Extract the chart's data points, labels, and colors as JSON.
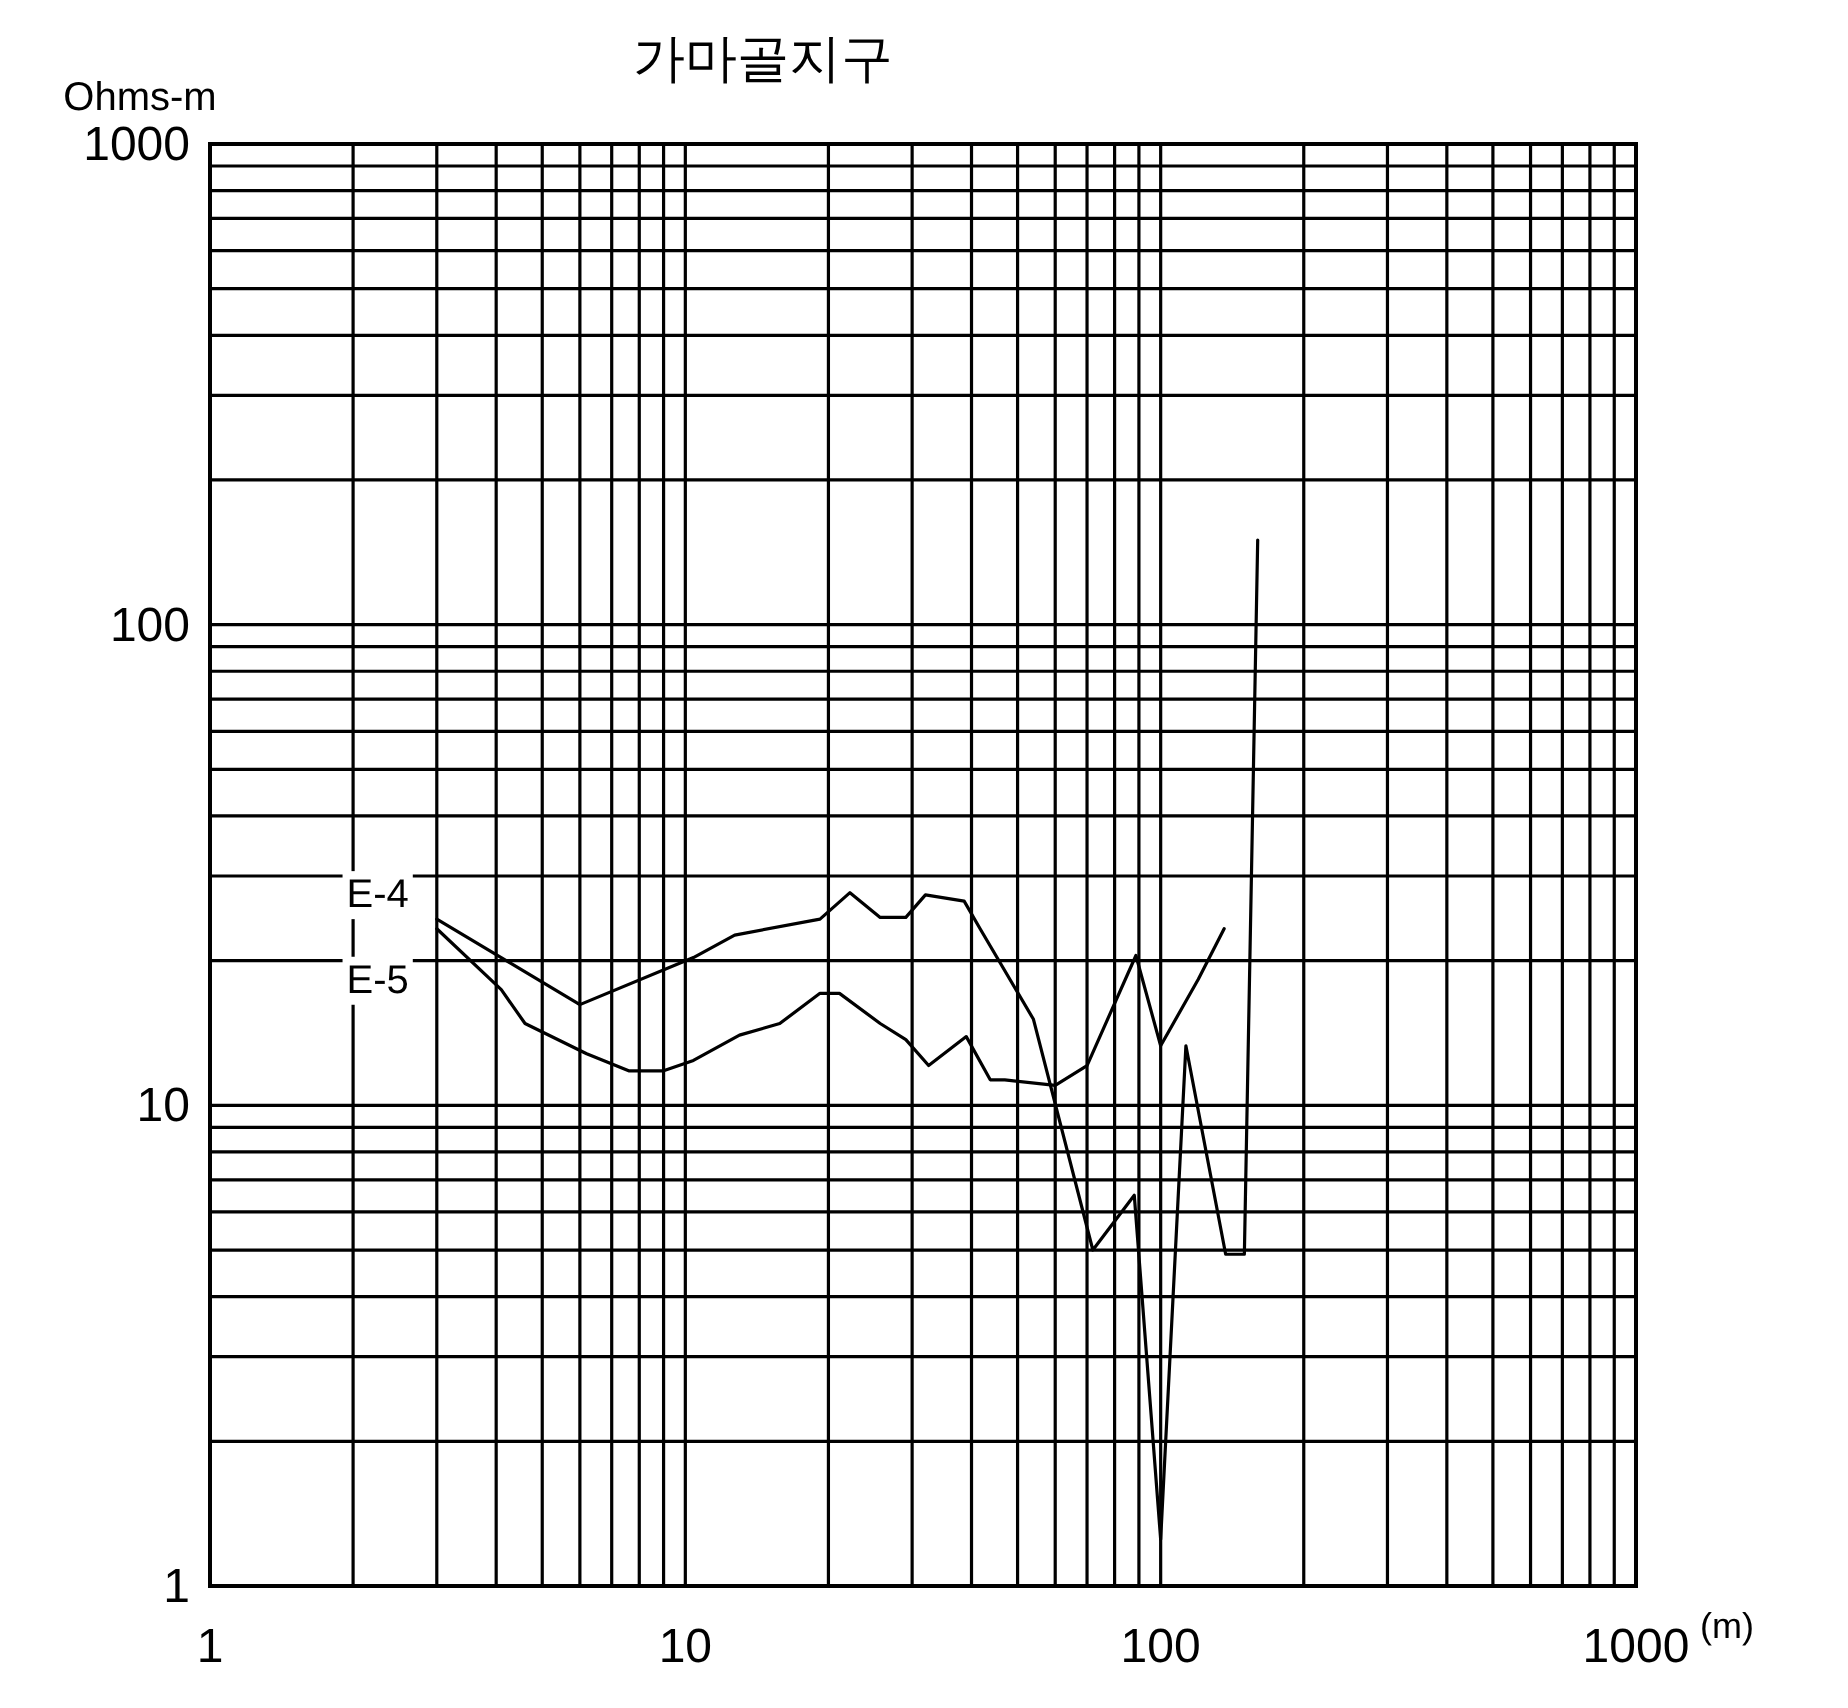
{
  "chart_data": {
    "type": "line",
    "title": "가마골지구",
    "ylabel": "Ohms-m",
    "xlabel": "(m)",
    "log": "xy",
    "grid": true,
    "marker": "none",
    "line_style": "solid",
    "xlim": [
      1,
      1000
    ],
    "ylim": [
      1,
      1000
    ],
    "xticks": [
      1,
      {
        "value": 2,
        "label": null
      },
      {
        "value": 3,
        "label": null
      },
      {
        "value": 4,
        "label": null
      },
      {
        "value": 5,
        "label": null
      },
      {
        "value": 6,
        "label": null
      },
      {
        "value": 7,
        "label": null
      },
      {
        "value": 8,
        "label": null
      },
      {
        "value": 9,
        "label": null
      },
      10,
      {
        "value": 20,
        "label": null
      },
      {
        "value": 30,
        "label": null
      },
      {
        "value": 40,
        "label": null
      },
      {
        "value": 50,
        "label": null
      },
      {
        "value": 60,
        "label": null
      },
      {
        "value": 70,
        "label": null
      },
      {
        "value": 80,
        "label": null
      },
      {
        "value": 90,
        "label": null
      },
      100,
      {
        "value": 200,
        "label": null
      },
      {
        "value": 300,
        "label": null
      },
      {
        "value": 400,
        "label": null
      },
      {
        "value": 500,
        "label": null
      },
      {
        "value": 600,
        "label": null
      },
      {
        "value": 700,
        "label": null
      },
      {
        "value": 800,
        "label": null
      },
      {
        "value": 900,
        "label": null
      },
      1000
    ],
    "yticks": [
      1,
      {
        "value": 2,
        "label": null
      },
      {
        "value": 3,
        "label": null
      },
      {
        "value": 4,
        "label": null
      },
      {
        "value": 5,
        "label": null
      },
      {
        "value": 6,
        "label": null
      },
      {
        "value": 7,
        "label": null
      },
      {
        "value": 8,
        "label": null
      },
      {
        "value": 9,
        "label": null
      },
      10,
      {
        "value": 20,
        "label": null
      },
      {
        "value": 30,
        "label": null
      },
      {
        "value": 40,
        "label": null
      },
      {
        "value": 50,
        "label": null
      },
      {
        "value": 60,
        "label": null
      },
      {
        "value": 70,
        "label": null
      },
      {
        "value": 80,
        "label": null
      },
      {
        "value": 90,
        "label": null
      },
      100,
      {
        "value": 200,
        "label": null
      },
      {
        "value": 300,
        "label": null
      },
      {
        "value": 400,
        "label": null
      },
      {
        "value": 500,
        "label": null
      },
      {
        "value": 600,
        "label": null
      },
      {
        "value": 700,
        "label": null
      },
      {
        "value": 800,
        "label": null
      },
      {
        "value": 900,
        "label": null
      },
      1000
    ],
    "series": [
      {
        "name": "E-4",
        "color": "#000000",
        "x": [
          3,
          6,
          10.4,
          12.7,
          19.2,
          22.2,
          25.7,
          29.1,
          32,
          38.6,
          41.7,
          54,
          72,
          88,
          100,
          113,
          137,
          150,
          160
        ],
        "values": [
          24.4,
          16.2,
          20.3,
          22.6,
          24.4,
          27.7,
          24.6,
          24.6,
          27.4,
          26.6,
          23.3,
          15.1,
          5,
          6.5,
          1.25,
          13.3,
          4.9,
          4.9,
          150
        ]
      },
      {
        "name": "E-5",
        "color": "#000000",
        "x": [
          3,
          4.1,
          4.6,
          6.2,
          7.6,
          9,
          10.4,
          13,
          15.8,
          19.2,
          21.1,
          25.7,
          29.1,
          32.5,
          39,
          43.8,
          47,
          60,
          70,
          88.7,
          100,
          120,
          136
        ],
        "values": [
          23.3,
          17.4,
          14.8,
          12.8,
          11.8,
          11.8,
          12.4,
          14,
          14.8,
          17.1,
          17.1,
          14.8,
          13.7,
          12.1,
          13.9,
          11.3,
          11.3,
          11,
          12.1,
          20.5,
          13.3,
          18.3,
          23.3
        ]
      }
    ]
  }
}
